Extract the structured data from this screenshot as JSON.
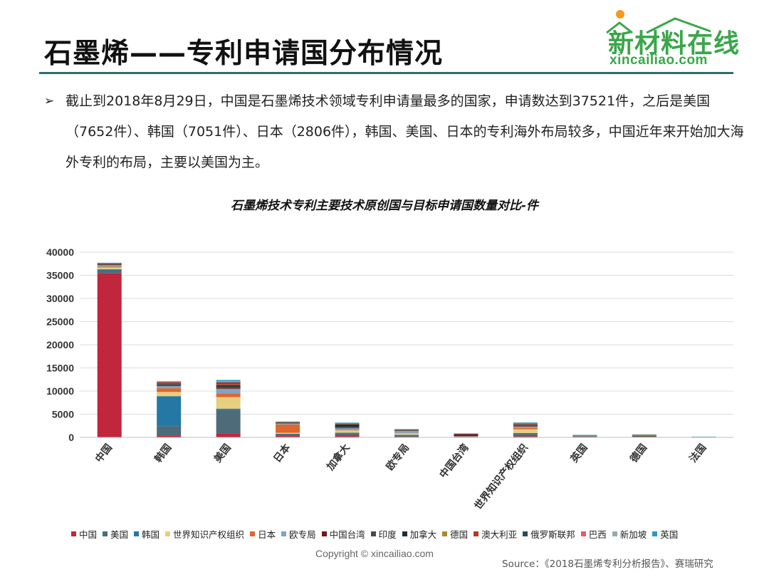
{
  "slide": {
    "title": "石墨烯——专利申请国分布情况",
    "bullet_marker": "➢",
    "bullet_text": "截止到2018年8月29日，中国是石墨烯技术领域专利申请量最多的国家，申请数达到37521件，之后是美国（7652件）、韩国（7051件）、日本（2806件），韩国、美国、日本的专利海外布局较多，中国近年来开始加大海外专利的布局，主要以美国为主。",
    "copyright": "Copyright © xincailiao.com",
    "source": "Source：《2018石墨烯专利分析报告》、赛瑞研究"
  },
  "logo": {
    "cn": "新材料在线",
    "en": "xincailiao.com",
    "color": "#3aa64a",
    "dot_color": "#f29b1d"
  },
  "chart_data": {
    "type": "bar",
    "stacked": true,
    "title": "石墨烯技术专利主要技术原创国与目标申请国数量对比-件",
    "xlabel": "",
    "ylabel": "",
    "ylim": [
      0,
      40000
    ],
    "yticks": [
      0,
      5000,
      10000,
      15000,
      20000,
      25000,
      30000,
      35000,
      40000
    ],
    "grid": true,
    "legend_position": "bottom",
    "categories": [
      "中国",
      "韩国",
      "美国",
      "日本",
      "加拿大",
      "欧专局",
      "中国台湾",
      "世界知识产权组织",
      "英国",
      "德国",
      "法国"
    ],
    "series": [
      {
        "name": "中国",
        "color": "#c0263c",
        "values": [
          35500,
          400,
          900,
          300,
          300,
          150,
          100,
          250,
          40,
          60,
          20
        ]
      },
      {
        "name": "美国",
        "color": "#4e6b79",
        "values": [
          500,
          2000,
          5000,
          400,
          600,
          350,
          120,
          500,
          80,
          100,
          60
        ]
      },
      {
        "name": "韩国",
        "color": "#2678a4",
        "values": [
          300,
          6500,
          300,
          100,
          100,
          80,
          20,
          200,
          10,
          10,
          5
        ]
      },
      {
        "name": "世界知识产权组织",
        "color": "#e6cf7e",
        "values": [
          400,
          900,
          2500,
          200,
          500,
          300,
          10,
          800,
          20,
          20,
          10
        ]
      },
      {
        "name": "日本",
        "color": "#e0662f",
        "values": [
          200,
          800,
          800,
          1800,
          100,
          100,
          20,
          300,
          20,
          20,
          10
        ]
      },
      {
        "name": "欧专局",
        "color": "#7fa6c0",
        "values": [
          300,
          500,
          1000,
          200,
          400,
          500,
          10,
          300,
          30,
          50,
          10
        ]
      },
      {
        "name": "中国台湾",
        "color": "#6e1a1e",
        "values": [
          100,
          200,
          200,
          50,
          50,
          20,
          500,
          50,
          10,
          10,
          5
        ]
      },
      {
        "name": "印度",
        "color": "#4a4a4a",
        "values": [
          100,
          200,
          300,
          100,
          200,
          50,
          10,
          200,
          10,
          10,
          5
        ]
      },
      {
        "name": "加拿大",
        "color": "#1e2f3a",
        "values": [
          100,
          150,
          300,
          80,
          600,
          50,
          10,
          150,
          20,
          10,
          5
        ]
      },
      {
        "name": "德国",
        "color": "#a88a2c",
        "values": [
          30,
          50,
          100,
          30,
          20,
          50,
          5,
          50,
          20,
          300,
          5
        ]
      },
      {
        "name": "澳大利亚",
        "color": "#b23a22",
        "values": [
          80,
          150,
          300,
          50,
          100,
          40,
          5,
          150,
          10,
          10,
          5
        ]
      },
      {
        "name": "俄罗斯联邦",
        "color": "#2c4b5a",
        "values": [
          30,
          80,
          150,
          30,
          50,
          20,
          5,
          80,
          5,
          5,
          5
        ]
      },
      {
        "name": "巴西",
        "color": "#e65a6b",
        "values": [
          20,
          60,
          150,
          20,
          50,
          20,
          5,
          60,
          5,
          5,
          5
        ]
      },
      {
        "name": "新加坡",
        "color": "#9aa7ad",
        "values": [
          20,
          60,
          150,
          20,
          30,
          20,
          5,
          50,
          5,
          5,
          5
        ]
      },
      {
        "name": "英国",
        "color": "#2a9cc0",
        "values": [
          30,
          80,
          250,
          30,
          100,
          50,
          5,
          100,
          250,
          20,
          5
        ]
      }
    ]
  }
}
